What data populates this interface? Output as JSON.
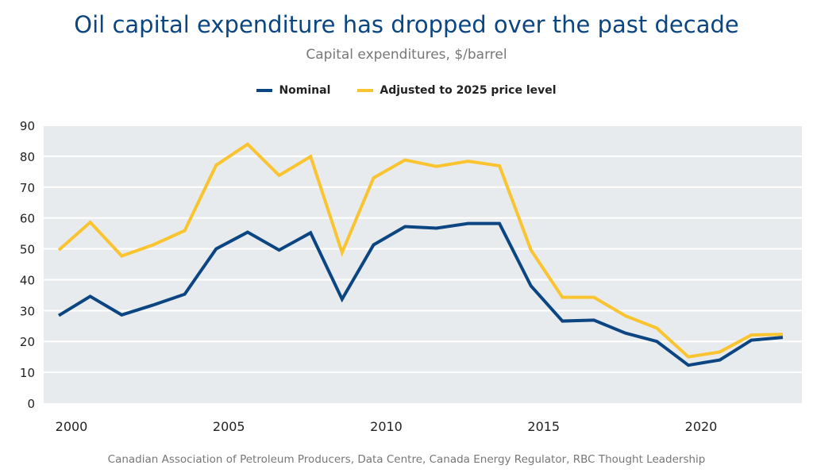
{
  "chart_data": {
    "type": "line",
    "title": "Oil capital expenditure has dropped over the past decade",
    "subtitle": "Capital expenditures, $/barrel",
    "xlabel": "",
    "ylabel": "",
    "ylim": [
      0,
      90
    ],
    "yticks": [
      0,
      10,
      20,
      30,
      40,
      50,
      60,
      70,
      80,
      90
    ],
    "xticks": [
      2000,
      2005,
      2010,
      2015,
      2020
    ],
    "grid": true,
    "legend": "top",
    "x": [
      2000,
      2001,
      2002,
      2003,
      2004,
      2005,
      2006,
      2007,
      2008,
      2009,
      2010,
      2011,
      2012,
      2013,
      2014,
      2015,
      2016,
      2017,
      2018,
      2019,
      2020,
      2021,
      2022,
      2023
    ],
    "series": [
      {
        "name": "Nominal",
        "color": "#0b4582",
        "values": [
          28.4,
          34.6,
          28.6,
          31.8,
          35.3,
          50.0,
          55.4,
          49.6,
          55.2,
          33.7,
          51.3,
          57.2,
          56.7,
          58.2,
          58.2,
          38.0,
          26.6,
          26.9,
          22.7,
          20.0,
          12.3,
          14.0,
          20.4,
          21.3
        ]
      },
      {
        "name": "Adjusted to 2025 price level",
        "color": "#f9c430",
        "values": [
          49.6,
          58.6,
          47.7,
          51.3,
          55.9,
          77.1,
          83.9,
          73.8,
          79.9,
          48.8,
          73.0,
          78.8,
          76.7,
          78.4,
          76.9,
          49.6,
          34.3,
          34.3,
          28.3,
          24.3,
          15.0,
          16.6,
          22.1,
          22.3
        ]
      }
    ],
    "source": "Canadian Association of Petroleum Producers, Data Centre, Canada Energy Regulator, RBC Thought Leadership"
  }
}
